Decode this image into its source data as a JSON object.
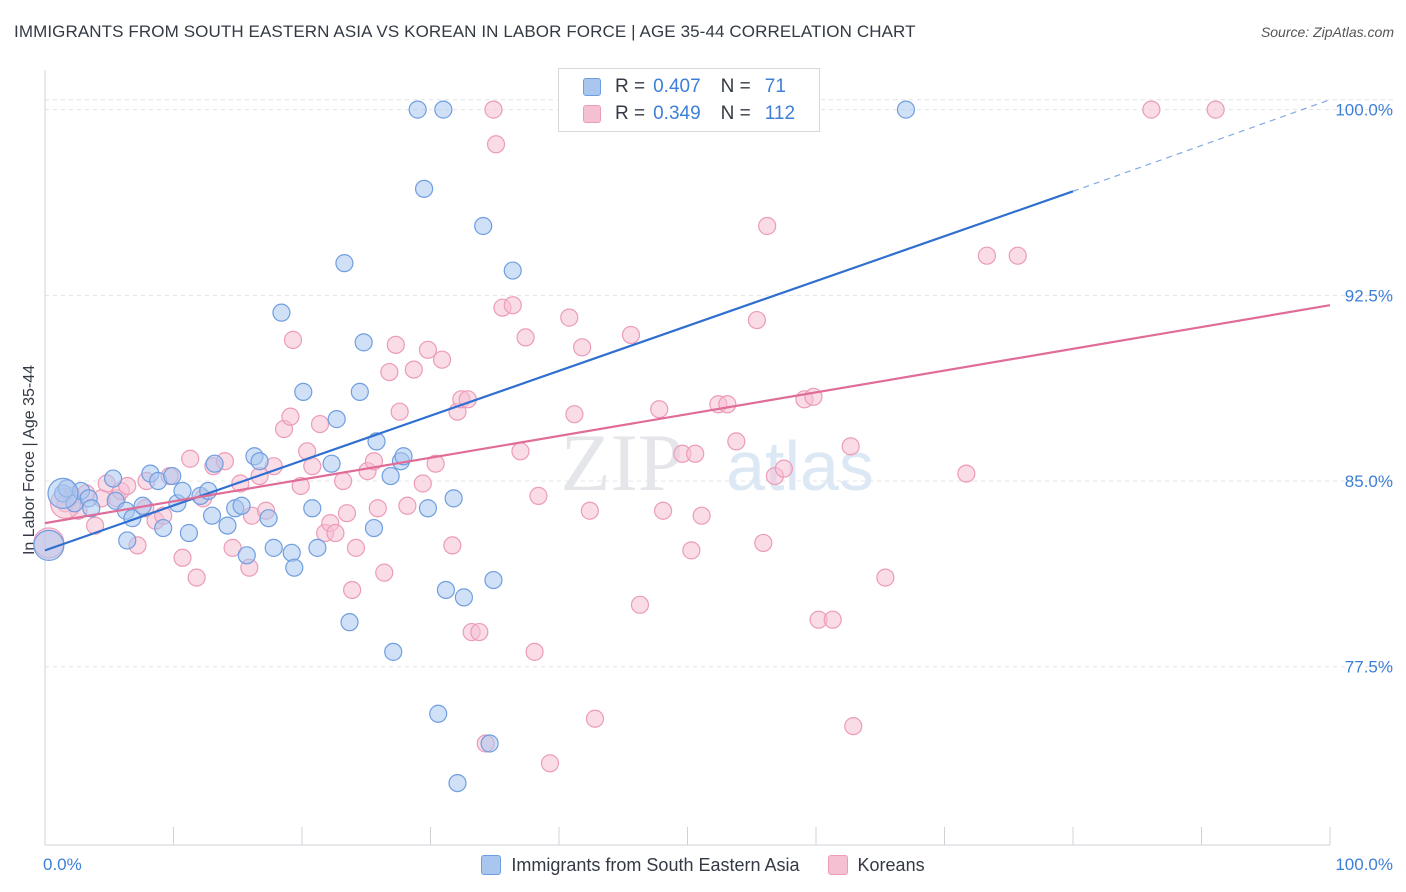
{
  "title": "IMMIGRANTS FROM SOUTH EASTERN ASIA VS KOREAN IN LABOR FORCE | AGE 35-44 CORRELATION CHART",
  "source": "Source: ZipAtlas.com",
  "watermark": {
    "part1": "ZIP",
    "part2": "atlas"
  },
  "legend_top": [
    {
      "r_label": "R =",
      "r_value": "0.407",
      "n_label": "N =",
      "n_value": "71"
    },
    {
      "r_label": "R =",
      "r_value": "0.349",
      "n_label": "N =",
      "n_value": "112"
    }
  ],
  "chart_data": {
    "type": "scatter",
    "ylabel": "In Labor Force | Age 35-44",
    "xlim": [
      0,
      100
    ],
    "ylim": [
      70.3,
      101.6
    ],
    "x_tick_labels": [
      "0.0%",
      "100.0%"
    ],
    "y_ticks": [
      77.5,
      85.0,
      92.5,
      100.0
    ],
    "y_tick_labels": [
      "77.5%",
      "85.0%",
      "92.5%",
      "100.0%"
    ],
    "grid": true,
    "colors": {
      "blue_fill": "#a9c6ee",
      "blue_stroke": "#6f9ee0",
      "blue_line": "#2f6fd0",
      "pink_fill": "#f6c0d3",
      "pink_stroke": "#ec9bb8",
      "pink_line": "#e06c98",
      "tick_label": "#3d7fd6"
    },
    "series": [
      {
        "name": "Immigrants from South Eastern Asia",
        "trend": {
          "x0": 0,
          "y0": 82.2,
          "x1": 80.0,
          "y1": 96.7,
          "dash_to_x": 100,
          "dash_to_y": 100.4
        },
        "points": [
          [
            1.4,
            84.5
          ],
          [
            1.7,
            84.7
          ],
          [
            2.3,
            84.1
          ],
          [
            2.8,
            84.6
          ],
          [
            3.4,
            84.3
          ],
          [
            3.6,
            83.9
          ],
          [
            5.3,
            85.1
          ],
          [
            5.5,
            84.2
          ],
          [
            6.3,
            83.8
          ],
          [
            6.4,
            82.6
          ],
          [
            6.8,
            83.5
          ],
          [
            7.6,
            84.0
          ],
          [
            8.2,
            85.3
          ],
          [
            8.8,
            85.0
          ],
          [
            9.2,
            83.1
          ],
          [
            9.9,
            85.2
          ],
          [
            10.3,
            84.1
          ],
          [
            10.7,
            84.6
          ],
          [
            11.2,
            82.9
          ],
          [
            12.1,
            84.4
          ],
          [
            12.7,
            84.6
          ],
          [
            13.0,
            83.6
          ],
          [
            13.2,
            85.7
          ],
          [
            14.2,
            83.2
          ],
          [
            14.8,
            83.9
          ],
          [
            15.3,
            84.0
          ],
          [
            15.7,
            82.0
          ],
          [
            16.3,
            86.0
          ],
          [
            16.7,
            85.8
          ],
          [
            17.4,
            83.5
          ],
          [
            17.8,
            82.3
          ],
          [
            18.4,
            91.8
          ],
          [
            19.2,
            82.1
          ],
          [
            19.4,
            81.5
          ],
          [
            20.1,
            88.6
          ],
          [
            20.8,
            83.9
          ],
          [
            21.2,
            82.3
          ],
          [
            22.3,
            85.7
          ],
          [
            22.7,
            87.5
          ],
          [
            23.3,
            93.8
          ],
          [
            23.7,
            79.3
          ],
          [
            24.5,
            88.6
          ],
          [
            24.8,
            90.6
          ],
          [
            25.6,
            83.1
          ],
          [
            25.8,
            86.6
          ],
          [
            26.9,
            85.2
          ],
          [
            27.1,
            78.1
          ],
          [
            27.7,
            85.8
          ],
          [
            27.9,
            86.0
          ],
          [
            29.0,
            100.0
          ],
          [
            29.5,
            96.8
          ],
          [
            29.8,
            83.9
          ],
          [
            30.6,
            75.6
          ],
          [
            31.0,
            100.0
          ],
          [
            31.2,
            80.6
          ],
          [
            31.8,
            84.3
          ],
          [
            32.1,
            72.8
          ],
          [
            32.6,
            80.3
          ],
          [
            34.1,
            95.3
          ],
          [
            34.6,
            74.4
          ],
          [
            34.9,
            81.0
          ],
          [
            36.4,
            93.5
          ],
          [
            43.0,
            100.0
          ],
          [
            67.0,
            100.0
          ]
        ],
        "big_points": [
          [
            1.4,
            84.5
          ],
          [
            0.3,
            82.4
          ]
        ]
      },
      {
        "name": "Koreans",
        "trend": {
          "x0": 0,
          "y0": 83.3,
          "x1": 100,
          "y1": 92.1
        },
        "points": [
          [
            1.6,
            84.1
          ],
          [
            2.1,
            84.4
          ],
          [
            2.6,
            83.8
          ],
          [
            3.2,
            84.5
          ],
          [
            3.9,
            83.2
          ],
          [
            4.4,
            84.3
          ],
          [
            4.8,
            84.9
          ],
          [
            5.6,
            84.3
          ],
          [
            5.9,
            84.6
          ],
          [
            6.4,
            84.8
          ],
          [
            7.2,
            82.4
          ],
          [
            7.8,
            83.9
          ],
          [
            7.9,
            85.0
          ],
          [
            8.6,
            83.4
          ],
          [
            9.2,
            83.6
          ],
          [
            9.7,
            85.2
          ],
          [
            10.7,
            81.9
          ],
          [
            11.3,
            85.9
          ],
          [
            11.8,
            81.1
          ],
          [
            12.3,
            84.3
          ],
          [
            13.1,
            85.6
          ],
          [
            14.0,
            85.8
          ],
          [
            14.6,
            82.3
          ],
          [
            15.2,
            84.9
          ],
          [
            15.9,
            81.5
          ],
          [
            16.1,
            83.6
          ],
          [
            16.7,
            85.2
          ],
          [
            17.2,
            83.8
          ],
          [
            17.8,
            85.6
          ],
          [
            18.6,
            87.1
          ],
          [
            19.1,
            87.6
          ],
          [
            19.3,
            90.7
          ],
          [
            19.9,
            84.8
          ],
          [
            20.4,
            86.2
          ],
          [
            20.8,
            85.6
          ],
          [
            21.4,
            87.3
          ],
          [
            21.8,
            82.9
          ],
          [
            22.2,
            83.3
          ],
          [
            22.6,
            82.9
          ],
          [
            23.2,
            85.0
          ],
          [
            23.5,
            83.7
          ],
          [
            23.9,
            80.6
          ],
          [
            24.2,
            82.3
          ],
          [
            25.1,
            85.4
          ],
          [
            25.6,
            85.8
          ],
          [
            25.9,
            83.9
          ],
          [
            26.4,
            81.3
          ],
          [
            26.8,
            89.4
          ],
          [
            27.3,
            90.5
          ],
          [
            27.6,
            87.8
          ],
          [
            28.2,
            84.0
          ],
          [
            28.7,
            89.5
          ],
          [
            29.4,
            84.9
          ],
          [
            29.8,
            90.3
          ],
          [
            30.4,
            85.7
          ],
          [
            30.9,
            89.9
          ],
          [
            31.7,
            82.4
          ],
          [
            32.1,
            87.8
          ],
          [
            32.4,
            88.3
          ],
          [
            32.9,
            88.3
          ],
          [
            33.2,
            78.9
          ],
          [
            33.8,
            78.9
          ],
          [
            34.3,
            74.4
          ],
          [
            34.9,
            100.0
          ],
          [
            35.1,
            98.6
          ],
          [
            35.6,
            92.0
          ],
          [
            36.4,
            92.1
          ],
          [
            37.0,
            86.2
          ],
          [
            37.4,
            90.8
          ],
          [
            38.1,
            78.1
          ],
          [
            38.4,
            84.4
          ],
          [
            39.3,
            73.6
          ],
          [
            40.8,
            91.6
          ],
          [
            41.2,
            87.7
          ],
          [
            41.8,
            90.4
          ],
          [
            42.4,
            83.8
          ],
          [
            42.8,
            75.4
          ],
          [
            45.6,
            90.9
          ],
          [
            46.3,
            80.0
          ],
          [
            47.8,
            87.9
          ],
          [
            48.1,
            83.8
          ],
          [
            49.6,
            86.1
          ],
          [
            50.3,
            82.2
          ],
          [
            51.1,
            83.6
          ],
          [
            52.4,
            88.1
          ],
          [
            53.1,
            88.1
          ],
          [
            53.8,
            86.6
          ],
          [
            55.4,
            91.5
          ],
          [
            55.9,
            82.5
          ],
          [
            56.2,
            95.3
          ],
          [
            56.8,
            85.2
          ],
          [
            57.5,
            85.5
          ],
          [
            58.4,
            100.0
          ],
          [
            59.1,
            88.3
          ],
          [
            59.8,
            88.4
          ],
          [
            60.2,
            79.4
          ],
          [
            61.3,
            79.4
          ],
          [
            62.7,
            86.4
          ],
          [
            62.9,
            75.1
          ],
          [
            65.4,
            81.1
          ],
          [
            71.7,
            85.3
          ],
          [
            73.3,
            94.1
          ],
          [
            75.7,
            94.1
          ],
          [
            86.1,
            100.0
          ],
          [
            91.1,
            100.0
          ],
          [
            50.6,
            86.1
          ]
        ],
        "big_points": [
          [
            1.6,
            84.1
          ],
          [
            0.3,
            82.5
          ]
        ]
      }
    ]
  },
  "legend_bottom": [
    {
      "label": "Immigrants from South Eastern Asia"
    },
    {
      "label": "Koreans"
    }
  ]
}
